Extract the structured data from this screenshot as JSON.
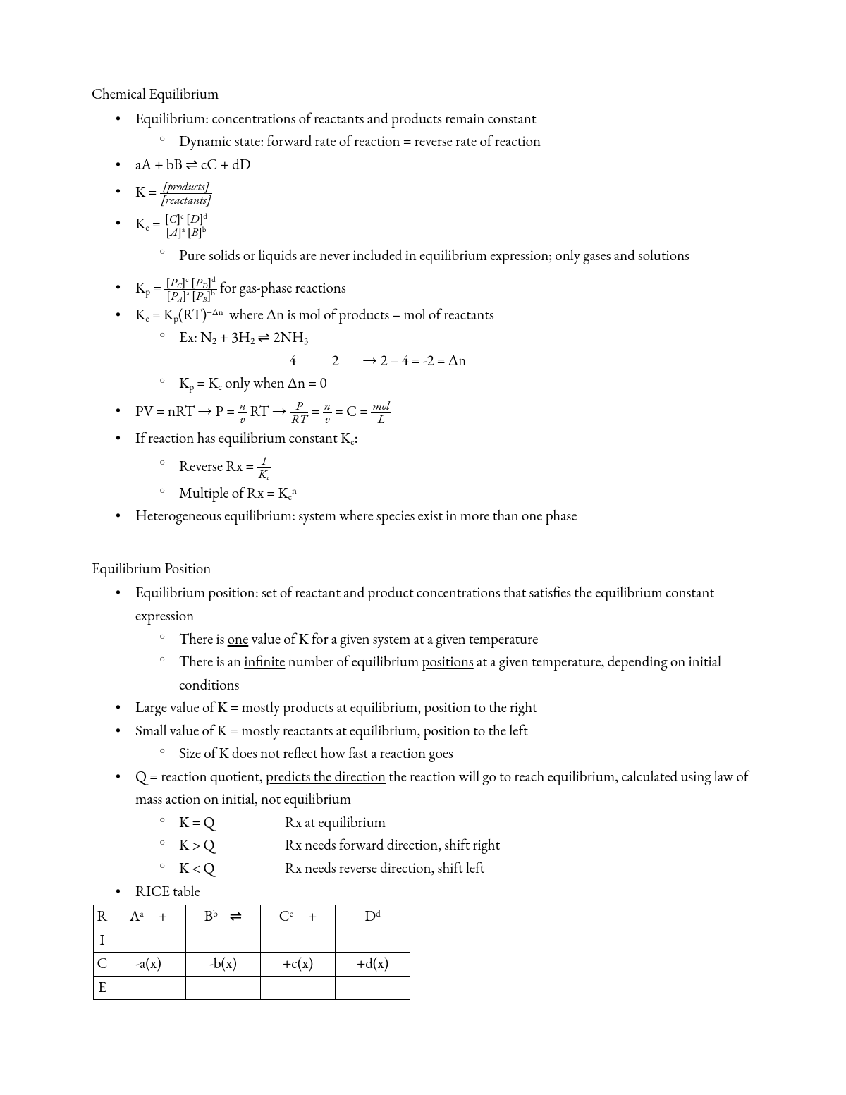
{
  "sections": {
    "chem": {
      "title": "Chemical Equilibrium",
      "equil_def": "Equilibrium: concentrations of reactants and products remain constant",
      "dynamic": "Dynamic state: forward rate of reaction = reverse rate of reaction",
      "rx": "aA + bB ⇌ cC + dD",
      "k_label": "K = ",
      "k_num": "[products]",
      "k_den": "[reactants]",
      "kc_label": "K",
      "kc_sub": "c",
      "kc_num": "[C]ᶜ [D]ᵈ",
      "kc_den": "[A]ᵃ [B]ᵇ",
      "kc_note": "Pure solids or liquids are never included in equilibrium expression; only gases and solutions",
      "kp_label": "K",
      "kp_sub": "p",
      "kp_numA": "[P",
      "kp_num_c": "C",
      "kp_num_cexp": "c",
      "kp_num_d_br": "[P",
      "kp_num_d": "D",
      "kp_num_dexp": "d",
      "kp_denA": "[P",
      "kp_den_a": "A",
      "kp_den_aexp": "a",
      "kp_den_b_br": "[P",
      "kp_den_b": "B",
      "kp_den_bexp": "b",
      "kp_tail": " for gas-phase reactions",
      "kc_kp": "Kc = Kp(RT)⁻ᐃⁿ  where Δn is mol of products – mol of reactants",
      "ex1": "Ex: N₂ + 3H₂ ⇌ 2NH₃",
      "ex1b": "4           2        → 2 – 4 = -2 = Δn",
      "kp_eq_kc": "Kp = Kc only when Δn = 0",
      "pv_pre": "PV = nRT → P = ",
      "pv_f1_num": "n",
      "pv_f1_den": "v",
      "pv_mid1": " RT → ",
      "pv_f2_num": "P",
      "pv_f2_den": "RT",
      "pv_mid2": " = ",
      "pv_f3_num": "n",
      "pv_f3_den": "v",
      "pv_mid3": " = C = ",
      "pv_f4_num": "mol",
      "pv_f4_den": "L",
      "ifrx": "If reaction has equilibrium constant Kc:",
      "rev_pre": "Reverse Rx = ",
      "rev_num": "1",
      "rev_den": "Kc",
      "mult": "Multiple of Rx = Kcⁿ",
      "hetero": "Heterogeneous equilibrium: system where species exist in more than one phase"
    },
    "pos": {
      "title": "Equilibrium Position",
      "def": "Equilibrium position: set of reactant and product concentrations that satisfies the equilibrium constant expression",
      "one_a": "There is ",
      "one_u": "one",
      "one_b": " value of K for a given system at a given temperature",
      "inf_a": "There is an ",
      "inf_u": "infinite",
      "inf_b": " number of equilibrium ",
      "inf_u2": "positions",
      "inf_c": " at a given temperature, depending on initial conditions",
      "largeK": "Large value of K = mostly products at equilibrium, position to the right",
      "smallK": "Small value of K = mostly reactants at equilibrium, position to the left",
      "size": "Size of K does not reflect how fast a reaction goes",
      "q_a": "Q = reaction quotient, ",
      "q_u": "predicts the direction",
      "q_b": " the reaction will go to reach equilibrium, calculated using law of mass action on initial, not equilibrium",
      "kq1a": "K = Q",
      "kq1b": "Rx at equilibrium",
      "kq2a": "K > Q",
      "kq2b": "Rx needs forward direction, shift right",
      "kq3a": "K < Q",
      "kq3b": "Rx needs reverse direction, shift left",
      "rice_label": "RICE table"
    },
    "rice": {
      "r": "R",
      "i": "I",
      "c": "C",
      "e": "E",
      "h1": "Aᵃ     +",
      "h2": "Bᵇ    ⇌",
      "h3": "Cᶜ     +",
      "h4": "Dᵈ",
      "c1": "-a(x)",
      "c2": "-b(x)",
      "c3": "+c(x)",
      "c4": "+d(x)"
    }
  }
}
